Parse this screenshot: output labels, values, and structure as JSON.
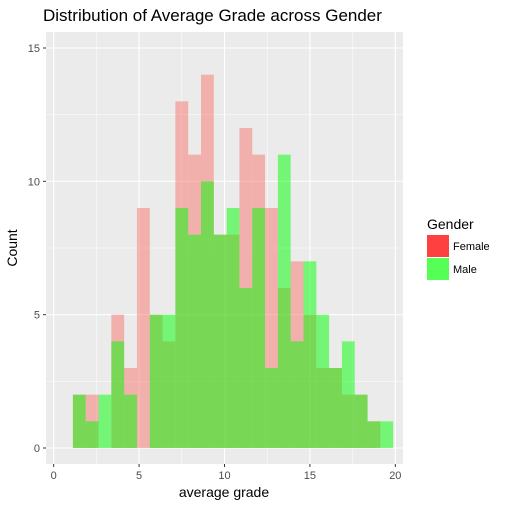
{
  "chart_data": {
    "type": "bar",
    "title": "Distribution of Average Grade across Gender",
    "xlabel": "average grade",
    "ylabel": "Count",
    "xlim": [
      -0.45,
      20.45
    ],
    "ylim": [
      -0.6,
      15.6
    ],
    "x_ticks": [
      0,
      5,
      10,
      15,
      20
    ],
    "y_ticks": [
      0,
      5,
      10,
      15
    ],
    "bin_width": 0.75,
    "bin_start": 1.125,
    "bin_centers": [
      1.5,
      2.25,
      3.0,
      3.75,
      4.5,
      5.25,
      6.0,
      6.75,
      7.5,
      8.25,
      9.0,
      9.75,
      10.5,
      11.25,
      12.0,
      12.75,
      13.5,
      14.25,
      15.0,
      15.75,
      16.5,
      17.25,
      18.0,
      18.75,
      19.5
    ],
    "series": [
      {
        "name": "Female",
        "color": "#F8766D",
        "alpha": 0.5,
        "values": [
          2,
          2,
          0,
          5,
          3,
          9,
          5,
          4,
          13,
          11,
          14,
          8,
          8,
          12,
          11,
          9,
          6,
          7,
          5,
          3,
          3,
          2,
          2,
          1,
          0
        ]
      },
      {
        "name": "Male",
        "color": "#00FF00",
        "alpha": 0.5,
        "values": [
          2,
          1,
          2,
          4,
          2,
          0,
          5,
          5,
          9,
          8,
          10,
          8,
          9,
          6,
          9,
          3,
          11,
          4,
          7,
          5,
          3,
          4,
          2,
          1,
          1
        ]
      }
    ],
    "legend": {
      "title": "Gender",
      "placement": "right",
      "items": [
        {
          "label": "Female",
          "color": "#FF4040"
        },
        {
          "label": "Male",
          "color": "#55FF55"
        }
      ]
    },
    "grid": true,
    "panel_background": "#EBEBEB",
    "overlap_color": "#88B243"
  }
}
